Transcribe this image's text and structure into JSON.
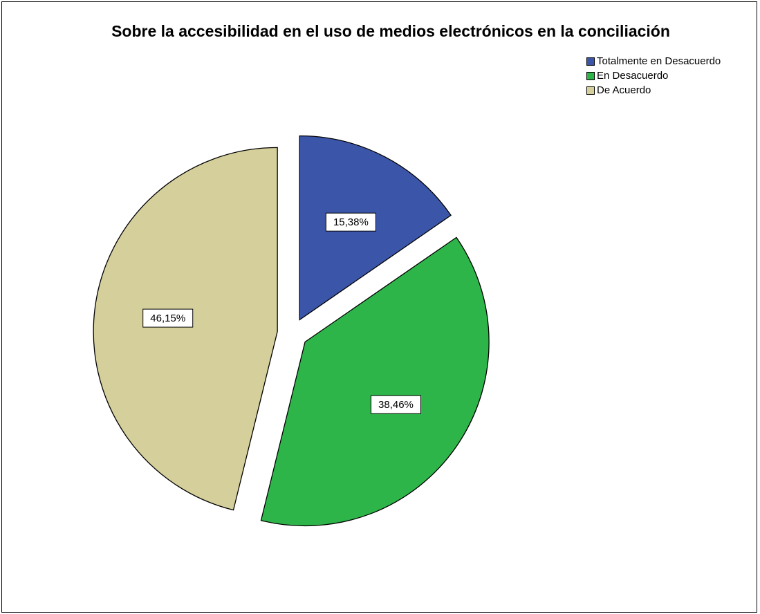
{
  "chart_data": {
    "type": "pie",
    "title": "Sobre la accesibilidad en el uso de medios electrónicos en la conciliación",
    "legend_position": "top-right",
    "slices": [
      {
        "label": "Totalmente en Desacuerdo",
        "value": 15.38,
        "display": "15,38%",
        "color": "#3b55a8"
      },
      {
        "label": "En Desacuerdo",
        "value": 38.46,
        "display": "38,46%",
        "color": "#2eb54a"
      },
      {
        "label": "De Acuerdo",
        "value": 46.15,
        "display": "46,15%",
        "color": "#d4cf9b"
      }
    ]
  }
}
